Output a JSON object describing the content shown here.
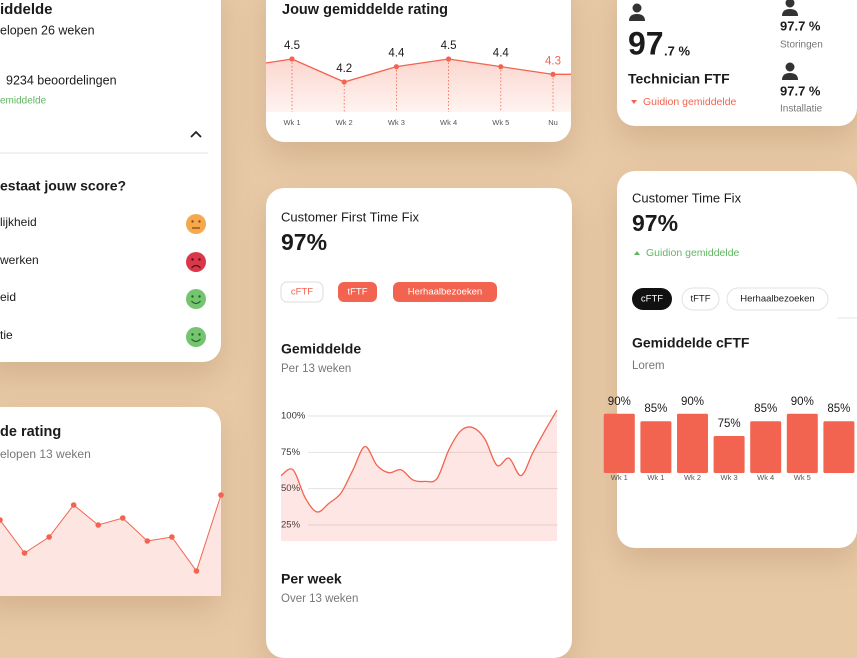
{
  "card_left": {
    "title": "iddelde",
    "subtitle": "elopen 26 weken",
    "reviews": "9234 beoordelingen",
    "note": "emiddelde",
    "question": "estaat jouw score?",
    "items": [
      "lijkheid",
      "werken",
      "eid",
      "tie"
    ]
  },
  "card_tech": {
    "score_main": "97",
    "score_decimal": ".7 %",
    "title": "Technician FTF",
    "note": "Guidion gemiddelde",
    "stats": [
      {
        "value": "97.7 %",
        "label": "Storingen"
      },
      {
        "value": "97.7 %",
        "label": "Installatie"
      }
    ]
  },
  "card_cftf": {
    "title": "Customer First Time Fix",
    "score": "97%",
    "tabs": [
      "cFTF",
      "tFTF",
      "Herhaalbezoeken"
    ],
    "section": "Per week",
    "section_sub": "Over 13 weken"
  },
  "card_ctf": {
    "title": "Customer Time Fix",
    "score": "97%",
    "note": "Guidion gemiddelde",
    "tabs": [
      "cFTF",
      "tFTF",
      "Herhaalbezoeken"
    ]
  },
  "chart_data": [
    {
      "type": "line",
      "title": "Jouw gemiddelde rating",
      "categories": [
        "Wk 1",
        "Wk 2",
        "Wk 3",
        "Wk 4",
        "Wk 5",
        "Nu"
      ],
      "values": [
        4.5,
        4.2,
        4.4,
        4.5,
        4.4,
        4.3
      ],
      "color": "#f26450"
    },
    {
      "type": "area",
      "title": "Gemiddelde",
      "subtitle": "Per 13 weken",
      "values": [
        59,
        63,
        44,
        34,
        40,
        47,
        63,
        79,
        66,
        61,
        63,
        56,
        55,
        57,
        77,
        90,
        92,
        84,
        66,
        71,
        59,
        75,
        90,
        104
      ],
      "ylim": [
        14,
        105
      ],
      "yticks": [
        {
          "value": 100,
          "label": "100%"
        },
        {
          "value": 75,
          "label": "75%"
        },
        {
          "value": 50,
          "label": "50%"
        },
        {
          "value": 25,
          "label": "25%"
        }
      ],
      "grid": true,
      "color": "#f26450"
    },
    {
      "type": "line",
      "title": "de rating",
      "subtitle": "elopen 13 weken",
      "values": [
        4.35,
        4.02,
        4.18,
        4.5,
        4.3,
        4.37,
        4.14,
        4.18,
        3.84,
        4.6
      ],
      "ylim": [
        3.5,
        4.8
      ],
      "color": "#f26450"
    },
    {
      "type": "bar",
      "title": "Gemiddelde cFTF",
      "subtitle": "Lorem",
      "categories": [
        "Wk 1",
        "Wk 1",
        "Wk 2",
        "Wk 3",
        "Wk 4",
        "Wk 5",
        null
      ],
      "values": [
        90,
        85,
        90,
        75,
        85,
        90,
        85
      ],
      "value_labels": [
        "90%",
        "85%",
        "90%",
        "75%",
        "85%",
        "90%",
        "85%"
      ],
      "ylim": [
        50,
        100
      ],
      "color": "#f26450"
    }
  ]
}
